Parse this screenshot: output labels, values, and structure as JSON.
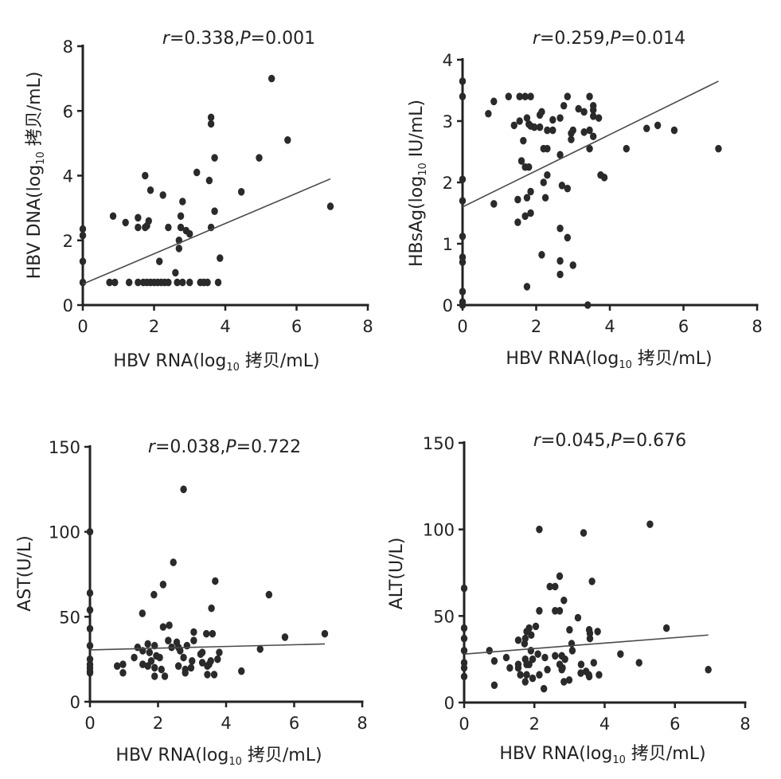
{
  "chart_data": [
    {
      "type": "scatter",
      "annotation": [
        "r",
        "=0.338,",
        "P",
        "=0.001"
      ],
      "xlabel": {
        "pre": "HBV RNA(log",
        "sub": "10",
        "post": " 拷贝/mL)"
      },
      "ylabel": {
        "pre": "HBV DNA(log",
        "sub": "10",
        "post": " 拷贝/mL)"
      },
      "xlim": [
        0,
        8
      ],
      "ylim": [
        0,
        8
      ],
      "xticks": [
        "0",
        "2",
        "4",
        "6",
        "8"
      ],
      "yticks": [
        "0",
        "2",
        "4",
        "6",
        "8"
      ],
      "fit_line": [
        [
          0,
          0.65
        ],
        [
          6.95,
          3.9
        ]
      ],
      "points": [
        [
          0,
          2.35
        ],
        [
          0,
          2.15
        ],
        [
          0,
          1.35
        ],
        [
          0,
          0.7
        ],
        [
          0.75,
          0.7
        ],
        [
          0.85,
          2.75
        ],
        [
          0.9,
          0.7
        ],
        [
          1.2,
          2.55
        ],
        [
          1.3,
          0.7
        ],
        [
          1.55,
          2.7
        ],
        [
          1.55,
          2.4
        ],
        [
          1.55,
          0.7
        ],
        [
          1.75,
          4.0
        ],
        [
          1.75,
          2.4
        ],
        [
          1.8,
          2.45
        ],
        [
          1.85,
          2.6
        ],
        [
          1.9,
          3.55
        ],
        [
          1.7,
          0.7
        ],
        [
          1.8,
          0.7
        ],
        [
          1.9,
          0.7
        ],
        [
          2.0,
          0.7
        ],
        [
          2.1,
          0.7
        ],
        [
          2.2,
          0.7
        ],
        [
          2.3,
          0.7
        ],
        [
          2.25,
          3.4
        ],
        [
          2.15,
          1.35
        ],
        [
          2.4,
          2.4
        ],
        [
          2.4,
          0.7
        ],
        [
          2.6,
          1.0
        ],
        [
          2.65,
          0.7
        ],
        [
          2.7,
          1.75
        ],
        [
          2.7,
          2.0
        ],
        [
          2.75,
          2.4
        ],
        [
          2.75,
          2.75
        ],
        [
          2.8,
          3.2
        ],
        [
          2.8,
          0.7
        ],
        [
          2.9,
          2.3
        ],
        [
          3.0,
          2.2
        ],
        [
          3.0,
          0.7
        ],
        [
          3.2,
          4.1
        ],
        [
          3.3,
          0.7
        ],
        [
          3.4,
          0.7
        ],
        [
          3.5,
          0.7
        ],
        [
          3.6,
          5.8
        ],
        [
          3.6,
          5.6
        ],
        [
          3.55,
          3.85
        ],
        [
          3.6,
          2.4
        ],
        [
          3.7,
          4.55
        ],
        [
          3.7,
          2.9
        ],
        [
          3.8,
          0.7
        ],
        [
          3.85,
          1.45
        ],
        [
          4.45,
          3.5
        ],
        [
          4.95,
          4.55
        ],
        [
          5.3,
          7.0
        ],
        [
          5.75,
          5.1
        ],
        [
          6.95,
          3.05
        ]
      ]
    },
    {
      "type": "scatter",
      "annotation": [
        "r",
        "=0.259,",
        "P",
        "=0.014"
      ],
      "xlabel": {
        "pre": "HBV RNA(log",
        "sub": "10",
        "post": " 拷贝/mL)"
      },
      "ylabel": {
        "pre": "HBsAg(log",
        "sub": "10",
        "post": " IU/mL)"
      },
      "xlim": [
        0,
        8
      ],
      "ylim": [
        0,
        4
      ],
      "xticks": [
        "0",
        "2",
        "4",
        "6",
        "8"
      ],
      "yticks": [
        "0",
        "1",
        "2",
        "3",
        "4"
      ],
      "fit_line": [
        [
          0,
          1.6
        ],
        [
          6.95,
          3.65
        ]
      ],
      "points": [
        [
          0,
          3.65
        ],
        [
          0,
          3.4
        ],
        [
          0,
          2.05
        ],
        [
          0,
          1.7
        ],
        [
          0,
          1.12
        ],
        [
          0,
          0.78
        ],
        [
          0,
          0.7
        ],
        [
          0,
          0.22
        ],
        [
          0,
          0.05
        ],
        [
          0,
          0.0
        ],
        [
          0.7,
          3.12
        ],
        [
          0.85,
          3.32
        ],
        [
          0.85,
          1.65
        ],
        [
          1.25,
          3.4
        ],
        [
          1.4,
          2.93
        ],
        [
          1.55,
          3.4
        ],
        [
          1.55,
          3.0
        ],
        [
          1.5,
          1.72
        ],
        [
          1.5,
          1.35
        ],
        [
          1.7,
          3.4
        ],
        [
          1.85,
          3.4
        ],
        [
          1.75,
          3.05
        ],
        [
          1.8,
          2.95
        ],
        [
          1.85,
          2.92
        ],
        [
          1.95,
          2.9
        ],
        [
          1.65,
          2.68
        ],
        [
          1.6,
          2.35
        ],
        [
          1.7,
          2.25
        ],
        [
          1.8,
          2.25
        ],
        [
          1.75,
          1.75
        ],
        [
          1.85,
          1.85
        ],
        [
          1.7,
          1.45
        ],
        [
          1.85,
          1.5
        ],
        [
          1.75,
          0.3
        ],
        [
          2.1,
          3.1
        ],
        [
          2.15,
          3.15
        ],
        [
          2.1,
          2.9
        ],
        [
          2.3,
          2.85
        ],
        [
          2.45,
          3.02
        ],
        [
          2.45,
          2.85
        ],
        [
          2.3,
          2.55
        ],
        [
          2.2,
          2.55
        ],
        [
          2.3,
          2.12
        ],
        [
          2.2,
          2.0
        ],
        [
          2.25,
          1.75
        ],
        [
          2.15,
          0.82
        ],
        [
          2.65,
          3.05
        ],
        [
          2.75,
          3.25
        ],
        [
          2.85,
          3.4
        ],
        [
          2.95,
          2.8
        ],
        [
          2.95,
          2.7
        ],
        [
          3.0,
          2.85
        ],
        [
          2.65,
          2.45
        ],
        [
          2.65,
          1.25
        ],
        [
          2.7,
          1.95
        ],
        [
          2.85,
          1.9
        ],
        [
          2.85,
          1.1
        ],
        [
          2.65,
          0.72
        ],
        [
          2.65,
          0.5
        ],
        [
          3.0,
          0.65
        ],
        [
          3.15,
          3.2
        ],
        [
          3.3,
          3.15
        ],
        [
          3.45,
          3.4
        ],
        [
          3.45,
          2.85
        ],
        [
          3.3,
          2.82
        ],
        [
          3.55,
          3.25
        ],
        [
          3.55,
          3.18
        ],
        [
          3.55,
          3.08
        ],
        [
          3.55,
          2.75
        ],
        [
          3.7,
          3.05
        ],
        [
          3.45,
          2.55
        ],
        [
          3.75,
          2.12
        ],
        [
          3.85,
          2.08
        ],
        [
          3.4,
          0.0
        ],
        [
          4.45,
          2.55
        ],
        [
          5.0,
          2.88
        ],
        [
          5.3,
          2.93
        ],
        [
          5.75,
          2.85
        ],
        [
          6.95,
          2.55
        ]
      ]
    },
    {
      "type": "scatter",
      "annotation": [
        "r",
        "=0.038,",
        "P",
        "=0.722"
      ],
      "xlabel": {
        "pre": "HBV RNA(log",
        "sub": "10",
        "post": " 拷贝/mL)"
      },
      "ylabel": {
        "pre": "AST(U/L)",
        "sub": "",
        "post": ""
      },
      "xlim": [
        0,
        8
      ],
      "ylim": [
        0,
        150
      ],
      "xticks": [
        "0",
        "2",
        "4",
        "6",
        "8"
      ],
      "yticks": [
        "0",
        "50",
        "100",
        "150"
      ],
      "fit_line": [
        [
          0,
          30.5
        ],
        [
          6.9,
          34
        ]
      ],
      "points": [
        [
          2.75,
          125
        ],
        [
          0,
          100
        ],
        [
          2.45,
          82
        ],
        [
          3.68,
          71
        ],
        [
          2.15,
          69
        ],
        [
          1.88,
          63
        ],
        [
          5.26,
          63
        ],
        [
          0,
          64
        ],
        [
          0,
          54
        ],
        [
          3.57,
          55
        ],
        [
          1.54,
          52
        ],
        [
          0,
          43
        ],
        [
          2.15,
          44
        ],
        [
          2.33,
          45
        ],
        [
          3.05,
          41
        ],
        [
          3.42,
          40
        ],
        [
          3.6,
          40
        ],
        [
          6.9,
          40
        ],
        [
          5.73,
          38
        ],
        [
          0,
          33
        ],
        [
          1.4,
          32
        ],
        [
          5.0,
          31
        ],
        [
          4.45,
          18
        ],
        [
          0.8,
          21
        ],
        [
          0.97,
          22
        ],
        [
          0.97,
          17
        ],
        [
          0,
          25
        ],
        [
          0,
          22
        ],
        [
          0,
          20
        ],
        [
          0,
          18
        ],
        [
          0,
          17
        ],
        [
          1.55,
          30
        ],
        [
          1.3,
          26
        ],
        [
          1.55,
          22
        ],
        [
          1.7,
          34
        ],
        [
          1.75,
          29
        ],
        [
          1.8,
          24
        ],
        [
          1.9,
          33
        ],
        [
          1.95,
          27
        ],
        [
          2.05,
          26
        ],
        [
          1.7,
          21
        ],
        [
          1.9,
          20
        ],
        [
          1.9,
          15
        ],
        [
          2.1,
          19
        ],
        [
          2.2,
          15
        ],
        [
          2.3,
          36
        ],
        [
          2.4,
          32
        ],
        [
          2.55,
          35
        ],
        [
          2.6,
          32
        ],
        [
          2.65,
          30
        ],
        [
          2.75,
          26
        ],
        [
          2.6,
          21
        ],
        [
          2.8,
          19
        ],
        [
          2.8,
          17
        ],
        [
          2.85,
          33
        ],
        [
          3.05,
          36
        ],
        [
          3.0,
          24
        ],
        [
          2.97,
          20
        ],
        [
          3.25,
          28
        ],
        [
          3.3,
          29
        ],
        [
          3.3,
          23
        ],
        [
          3.45,
          21
        ],
        [
          3.55,
          24
        ],
        [
          3.5,
          22
        ],
        [
          3.45,
          16
        ],
        [
          3.65,
          16
        ],
        [
          3.75,
          25
        ],
        [
          3.8,
          29
        ]
      ]
    },
    {
      "type": "scatter",
      "annotation": [
        "r",
        "=0.045,",
        "P",
        "=0.676"
      ],
      "xlabel": {
        "pre": "HBV RNA(log",
        "sub": "10",
        "post": " 拷贝/mL)"
      },
      "ylabel": {
        "pre": "ALT(U/L)",
        "sub": "",
        "post": ""
      },
      "xlim": [
        0,
        8
      ],
      "ylim": [
        0,
        150
      ],
      "xticks": [
        "0",
        "2",
        "4",
        "6",
        "8"
      ],
      "yticks": [
        "0",
        "50",
        "100",
        "150"
      ],
      "fit_line": [
        [
          0,
          28
        ],
        [
          6.95,
          39
        ]
      ],
      "points": [
        [
          2.14,
          100
        ],
        [
          3.4,
          98
        ],
        [
          5.29,
          103
        ],
        [
          0,
          66
        ],
        [
          2.72,
          73
        ],
        [
          2.44,
          67
        ],
        [
          2.59,
          67
        ],
        [
          3.64,
          70
        ],
        [
          2.84,
          59
        ],
        [
          2.14,
          53
        ],
        [
          2.59,
          53
        ],
        [
          2.72,
          53
        ],
        [
          3.24,
          49
        ],
        [
          2.04,
          44
        ],
        [
          1.85,
          43
        ],
        [
          1.78,
          41
        ],
        [
          1.91,
          39
        ],
        [
          1.74,
          37
        ],
        [
          1.54,
          36
        ],
        [
          1.72,
          34
        ],
        [
          0,
          43
        ],
        [
          0,
          37
        ],
        [
          0,
          30
        ],
        [
          0,
          23
        ],
        [
          0,
          20
        ],
        [
          0,
          15
        ],
        [
          3.0,
          42
        ],
        [
          3.56,
          42
        ],
        [
          3.58,
          40
        ],
        [
          3.58,
          37
        ],
        [
          3.8,
          41
        ],
        [
          5.76,
          43
        ],
        [
          3.06,
          34
        ],
        [
          3.08,
          30
        ],
        [
          0.72,
          30
        ],
        [
          0.86,
          24
        ],
        [
          0.86,
          10
        ],
        [
          1.2,
          26
        ],
        [
          1.3,
          20
        ],
        [
          1.54,
          22
        ],
        [
          1.54,
          20
        ],
        [
          1.6,
          16
        ],
        [
          1.74,
          25
        ],
        [
          1.78,
          22
        ],
        [
          1.85,
          22
        ],
        [
          1.78,
          16
        ],
        [
          1.74,
          12
        ],
        [
          1.95,
          25
        ],
        [
          1.95,
          14
        ],
        [
          1.9,
          30
        ],
        [
          2.1,
          28
        ],
        [
          2.14,
          16
        ],
        [
          2.3,
          26
        ],
        [
          2.37,
          19
        ],
        [
          2.27,
          8
        ],
        [
          2.59,
          27
        ],
        [
          2.78,
          27
        ],
        [
          2.87,
          25
        ],
        [
          2.72,
          22
        ],
        [
          2.78,
          19
        ],
        [
          2.8,
          20
        ],
        [
          2.84,
          12
        ],
        [
          2.99,
          13
        ],
        [
          3.33,
          22
        ],
        [
          3.32,
          17
        ],
        [
          3.47,
          18
        ],
        [
          3.55,
          16
        ],
        [
          3.56,
          15
        ],
        [
          3.69,
          23
        ],
        [
          3.84,
          16
        ],
        [
          4.45,
          28
        ],
        [
          4.98,
          23
        ],
        [
          6.95,
          19
        ]
      ]
    }
  ]
}
